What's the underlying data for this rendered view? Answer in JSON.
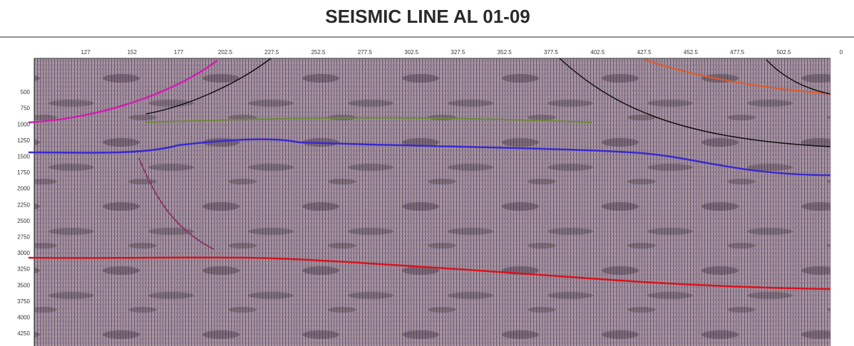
{
  "title": "SEISMIC LINE AL 01-09",
  "top_axis": [
    "127",
    "152",
    "177",
    "202.5",
    "227.5",
    "252.5",
    "277.5",
    "302.5",
    "327.5",
    "352.5",
    "377.5",
    "402.5",
    "427.5",
    "452.5",
    "477.5",
    "502.5",
    "0"
  ],
  "left_axis": [
    "500",
    "750",
    "1000",
    "1250",
    "1500",
    "1750",
    "2000",
    "2250",
    "2500",
    "2750",
    "3000",
    "3250",
    "3500",
    "3750",
    "4000",
    "4250"
  ]
}
